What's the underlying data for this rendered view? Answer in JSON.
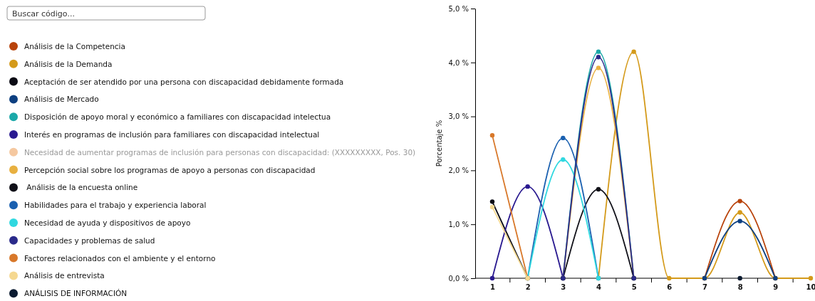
{
  "chart_data": {
    "type": "line",
    "ylabel": "Porcentaje %",
    "annotations": [
      "Buscar código..."
    ],
    "categories": [
      "1",
      "2",
      "3",
      "4",
      "5",
      "6",
      "7",
      "8",
      "9",
      "10"
    ],
    "ylim": [
      0,
      5
    ],
    "yticks": [
      {
        "value": 0,
        "label": "0,0 %"
      },
      {
        "value": 1,
        "label": "1,0 %"
      },
      {
        "value": 2,
        "label": "2,0 %"
      },
      {
        "value": 3,
        "label": "3,0 %"
      },
      {
        "value": 4,
        "label": "4,0 %"
      },
      {
        "value": 5,
        "label": "5,0 %"
      }
    ],
    "legend": "left",
    "marker": "circle",
    "line_style": "solid",
    "grid": false,
    "series": [
      {
        "name": "Análisis de la Competencia",
        "color": "#b8420a",
        "values": [
          null,
          null,
          null,
          null,
          null,
          null,
          0,
          1.43,
          0,
          null
        ]
      },
      {
        "name": "Análisis de la Demanda",
        "color": "#d49a1a",
        "values": [
          null,
          null,
          null,
          0,
          4.2,
          0,
          0,
          1.22,
          0,
          0
        ]
      },
      {
        "name": "Aceptación de ser atendido por una persona con discapacidad debidamente formada",
        "color": "#0a0a14",
        "values": [
          1.42,
          0,
          null,
          null,
          null,
          null,
          null,
          null,
          null,
          null
        ]
      },
      {
        "name": "Análisis de Mercado",
        "color": "#0d3f80",
        "values": [
          null,
          null,
          null,
          null,
          null,
          null,
          0,
          1.06,
          0,
          null
        ]
      },
      {
        "name": "Disposición de apoyo moral y económico a familiares con discapacidad intelectua",
        "color": "#1aa8a8",
        "values": [
          null,
          null,
          0,
          4.2,
          0,
          null,
          null,
          null,
          null,
          null
        ]
      },
      {
        "name": "Interés en programas de inclusión para familiares con discapacidad intelectual",
        "color": "#2a1a90",
        "values": [
          0,
          1.7,
          0,
          null,
          null,
          null,
          null,
          null,
          null,
          null
        ]
      },
      {
        "name": "Necesidad de aumentar programas de inclusión para personas con discapacidad: (XXXXXXXXX, Pos. 30)",
        "color": "#f5c8a0",
        "values": [
          null,
          null,
          null,
          null,
          null,
          null,
          null,
          null,
          null,
          null
        ]
      },
      {
        "name": "Percepción social sobre los programas de apoyo a personas con discapacidad",
        "color": "#e8b040",
        "values": [
          null,
          null,
          0,
          3.9,
          0,
          null,
          null,
          null,
          null,
          null
        ]
      },
      {
        "name": " Análisis de la encuesta online",
        "color": "#101018",
        "values": [
          null,
          null,
          0,
          1.65,
          0,
          null,
          null,
          null,
          null,
          null
        ]
      },
      {
        "name": "Habilidades para el trabajo y experiencia laboral",
        "color": "#1a60b0",
        "values": [
          null,
          0,
          2.6,
          0,
          null,
          null,
          null,
          null,
          null,
          null
        ]
      },
      {
        "name": "Necesidad de ayuda y dispositivos de apoyo",
        "color": "#30d8e0",
        "values": [
          null,
          0,
          2.2,
          0,
          null,
          null,
          null,
          null,
          null,
          null
        ]
      },
      {
        "name": "Capacidades y problemas de salud",
        "color": "#2a2a8a",
        "values": [
          null,
          null,
          0,
          4.1,
          0,
          null,
          null,
          null,
          null,
          null
        ]
      },
      {
        "name": "Factores relacionados con el ambiente y el entorno",
        "color": "#d8782a",
        "values": [
          2.65,
          0,
          null,
          null,
          null,
          null,
          null,
          null,
          null,
          null
        ]
      },
      {
        "name": "Análisis de entrevista",
        "color": "#f5d890",
        "values": [
          1.32,
          0,
          null,
          null,
          null,
          null,
          null,
          null,
          null,
          null
        ]
      },
      {
        "name": "ANÁLISIS DE INFORMACIÓN",
        "color": "#0a1a30",
        "values": [
          null,
          null,
          null,
          null,
          null,
          null,
          null,
          0,
          null,
          null
        ]
      }
    ]
  }
}
